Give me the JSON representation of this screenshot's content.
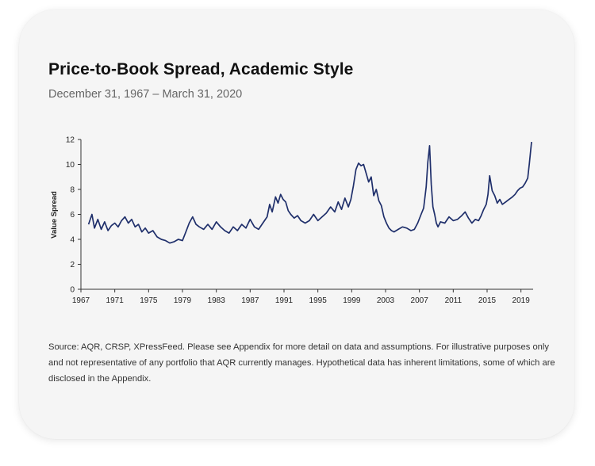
{
  "title": "Price-to-Book Spread, Academic Style",
  "subtitle": "December 31, 1967 – March 31, 2020",
  "source_note": "Source: AQR, CRSP, XPressFeed. Please see Appendix for more detail on data and assumptions. For illustrative purposes only and not representative of any portfolio that AQR currently manages. Hypothetical data has inherent limitations, some of which are disclosed in the Appendix.",
  "colors": {
    "line": "#1f2f6b",
    "card": "#f5f5f5"
  },
  "chart_data": {
    "type": "line",
    "title": "Price-to-Book Spread, Academic Style",
    "subtitle": "December 31, 1967 – March 31, 2020",
    "xlabel": "",
    "ylabel": "Value Spread",
    "xlim": [
      1967,
      2020.25
    ],
    "ylim": [
      0,
      12
    ],
    "x_ticks": [
      1967,
      1971,
      1975,
      1979,
      1983,
      1987,
      1991,
      1995,
      1999,
      2003,
      2007,
      2011,
      2015,
      2019
    ],
    "y_ticks": [
      0,
      2,
      4,
      6,
      8,
      10,
      12
    ],
    "grid": false,
    "legend": "none",
    "series": [
      {
        "x": [
          1967.9,
          1968.3,
          1968.6,
          1969.0,
          1969.4,
          1969.8,
          1970.2,
          1970.6,
          1971.0,
          1971.4,
          1971.8,
          1972.2,
          1972.6,
          1973.0,
          1973.4,
          1973.8,
          1974.2,
          1974.6,
          1975.0,
          1975.5,
          1976.0,
          1976.5,
          1977.0,
          1977.5,
          1978.0,
          1978.5,
          1979.0,
          1979.4,
          1979.8,
          1980.2,
          1980.6,
          1981.0,
          1981.5,
          1982.0,
          1982.5,
          1983.0,
          1983.5,
          1984.0,
          1984.5,
          1985.0,
          1985.5,
          1986.0,
          1986.5,
          1987.0,
          1987.5,
          1988.0,
          1988.5,
          1989.0,
          1989.3,
          1989.6,
          1990.0,
          1990.3,
          1990.6,
          1990.9,
          1991.2,
          1991.5,
          1991.8,
          1992.2,
          1992.6,
          1993.0,
          1993.5,
          1994.0,
          1994.5,
          1995.0,
          1995.5,
          1996.0,
          1996.5,
          1997.0,
          1997.4,
          1997.8,
          1998.2,
          1998.6,
          1998.9,
          1999.2,
          1999.5,
          1999.8,
          2000.1,
          2000.4,
          2000.7,
          2001.0,
          2001.3,
          2001.6,
          2001.9,
          2002.2,
          2002.5,
          2002.8,
          2003.1,
          2003.4,
          2003.7,
          2004.0,
          2004.5,
          2005.0,
          2005.5,
          2006.0,
          2006.4,
          2006.8,
          2007.2,
          2007.5,
          2007.8,
          2008.0,
          2008.2,
          2008.4,
          2008.6,
          2008.8,
          2009.0,
          2009.2,
          2009.5,
          2010.0,
          2010.5,
          2011.0,
          2011.5,
          2012.0,
          2012.4,
          2012.8,
          2013.2,
          2013.6,
          2014.0,
          2014.3,
          2014.6,
          2014.9,
          2015.1,
          2015.3,
          2015.6,
          2015.9,
          2016.2,
          2016.5,
          2016.8,
          2017.2,
          2017.6,
          2018.0,
          2018.3,
          2018.6,
          2018.9,
          2019.2,
          2019.5,
          2019.8,
          2020.0,
          2020.25
        ],
        "values": [
          5.2,
          6.0,
          4.9,
          5.6,
          4.8,
          5.4,
          4.7,
          5.1,
          5.3,
          5.0,
          5.5,
          5.8,
          5.3,
          5.6,
          5.0,
          5.2,
          4.6,
          4.9,
          4.5,
          4.7,
          4.2,
          4.0,
          3.9,
          3.7,
          3.8,
          4.0,
          3.9,
          4.6,
          5.3,
          5.8,
          5.2,
          5.0,
          4.8,
          5.2,
          4.8,
          5.4,
          5.0,
          4.7,
          4.5,
          5.0,
          4.7,
          5.2,
          4.9,
          5.6,
          5.0,
          4.8,
          5.3,
          5.8,
          6.8,
          6.2,
          7.4,
          6.9,
          7.6,
          7.2,
          7.0,
          6.3,
          6.0,
          5.7,
          5.9,
          5.5,
          5.3,
          5.5,
          6.0,
          5.5,
          5.8,
          6.1,
          6.6,
          6.2,
          7.0,
          6.4,
          7.3,
          6.6,
          7.2,
          8.3,
          9.6,
          10.1,
          9.9,
          10.0,
          9.3,
          8.6,
          9.0,
          7.5,
          8.0,
          7.1,
          6.7,
          5.8,
          5.3,
          4.9,
          4.7,
          4.6,
          4.8,
          5.0,
          4.9,
          4.7,
          4.8,
          5.3,
          6.0,
          6.5,
          8.2,
          10.2,
          11.5,
          8.4,
          6.6,
          6.0,
          5.3,
          5.0,
          5.4,
          5.3,
          5.8,
          5.5,
          5.6,
          5.9,
          6.2,
          5.7,
          5.3,
          5.6,
          5.5,
          5.9,
          6.4,
          6.8,
          7.6,
          9.1,
          7.9,
          7.5,
          6.9,
          7.2,
          6.8,
          7.0,
          7.2,
          7.4,
          7.6,
          7.9,
          8.1,
          8.2,
          8.5,
          8.9,
          10.1,
          11.8
        ]
      }
    ]
  }
}
